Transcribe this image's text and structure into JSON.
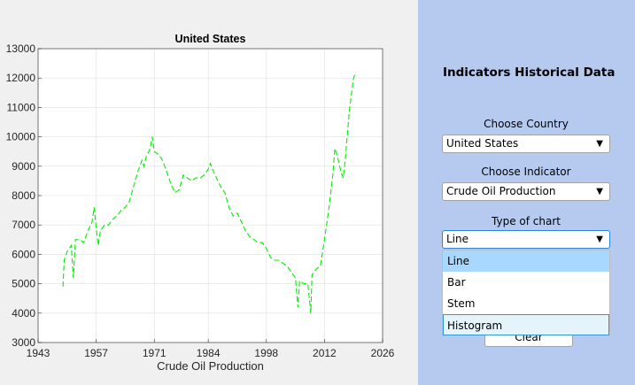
{
  "panel": {
    "title": "Indicators Historical Data",
    "country_label": "Choose Country",
    "country_value": "United States",
    "indicator_label": "Choose Indicator",
    "indicator_value": "Crude Oil Production",
    "chart_type_label": "Type of chart",
    "chart_type_value": "Line",
    "chart_type_options": [
      "Line",
      "Bar",
      "Stem",
      "Histogram"
    ],
    "clear_label": "Clear",
    "dropdown_arrow": "▼"
  },
  "colors": {
    "line": "#00ee00",
    "panel_bg": "#b6caf0",
    "selected_option": "#a8d7ff"
  },
  "chart_data": {
    "type": "line",
    "title": "United States",
    "xlabel": "Crude Oil Production",
    "ylabel": "",
    "xlim": [
      1943,
      2026
    ],
    "ylim": [
      3000,
      13000
    ],
    "xticks": [
      1943,
      1957,
      1971,
      1984,
      1998,
      2012,
      2026
    ],
    "yticks": [
      3000,
      4000,
      5000,
      6000,
      7000,
      8000,
      9000,
      10000,
      11000,
      12000,
      13000
    ],
    "grid": true,
    "line_style": "dashed",
    "series": [
      {
        "x": [
          1949.0,
          1949.3,
          1950,
          1951,
          1951.5,
          1952,
          1953,
          1954,
          1955,
          1956,
          1956.5,
          1957,
          1957.5,
          1958,
          1959,
          1960,
          1961,
          1962,
          1963,
          1964,
          1965,
          1966,
          1967,
          1968,
          1968.5,
          1969,
          1970,
          1970.5,
          1971,
          1972,
          1973,
          1974,
          1975,
          1976,
          1977,
          1978,
          1979,
          1980,
          1981,
          1982,
          1983,
          1984,
          1984.5,
          1985,
          1986,
          1987,
          1988,
          1989,
          1990,
          1991,
          1992,
          1993,
          1994,
          1995,
          1996,
          1997,
          1998,
          1999,
          2000,
          2001,
          2002,
          2003,
          2004,
          2005,
          2005.6,
          2006,
          2007,
          2008,
          2008.7,
          2009,
          2010,
          2011,
          2012,
          2013,
          2014,
          2014.5,
          2015,
          2016,
          2016.5,
          2017,
          2018,
          2019,
          2019.5
        ],
        "y": [
          4900,
          5800,
          6100,
          6300,
          5200,
          6500,
          6500,
          6400,
          6800,
          7100,
          7600,
          6900,
          6300,
          6800,
          7000,
          7000,
          7200,
          7300,
          7500,
          7600,
          7800,
          8300,
          8800,
          9200,
          9000,
          9300,
          9600,
          10000,
          9500,
          9400,
          9200,
          8800,
          8400,
          8100,
          8200,
          8700,
          8600,
          8500,
          8600,
          8600,
          8700,
          8900,
          9100,
          8900,
          8600,
          8300,
          8100,
          7600,
          7300,
          7400,
          7100,
          6800,
          6600,
          6500,
          6400,
          6400,
          6200,
          5900,
          5800,
          5800,
          5700,
          5600,
          5400,
          5200,
          4200,
          5100,
          5000,
          5000,
          4000,
          5300,
          5500,
          5600,
          6500,
          7500,
          8700,
          9600,
          9400,
          8800,
          8600,
          9200,
          10900,
          12000,
          12200
        ]
      }
    ]
  }
}
